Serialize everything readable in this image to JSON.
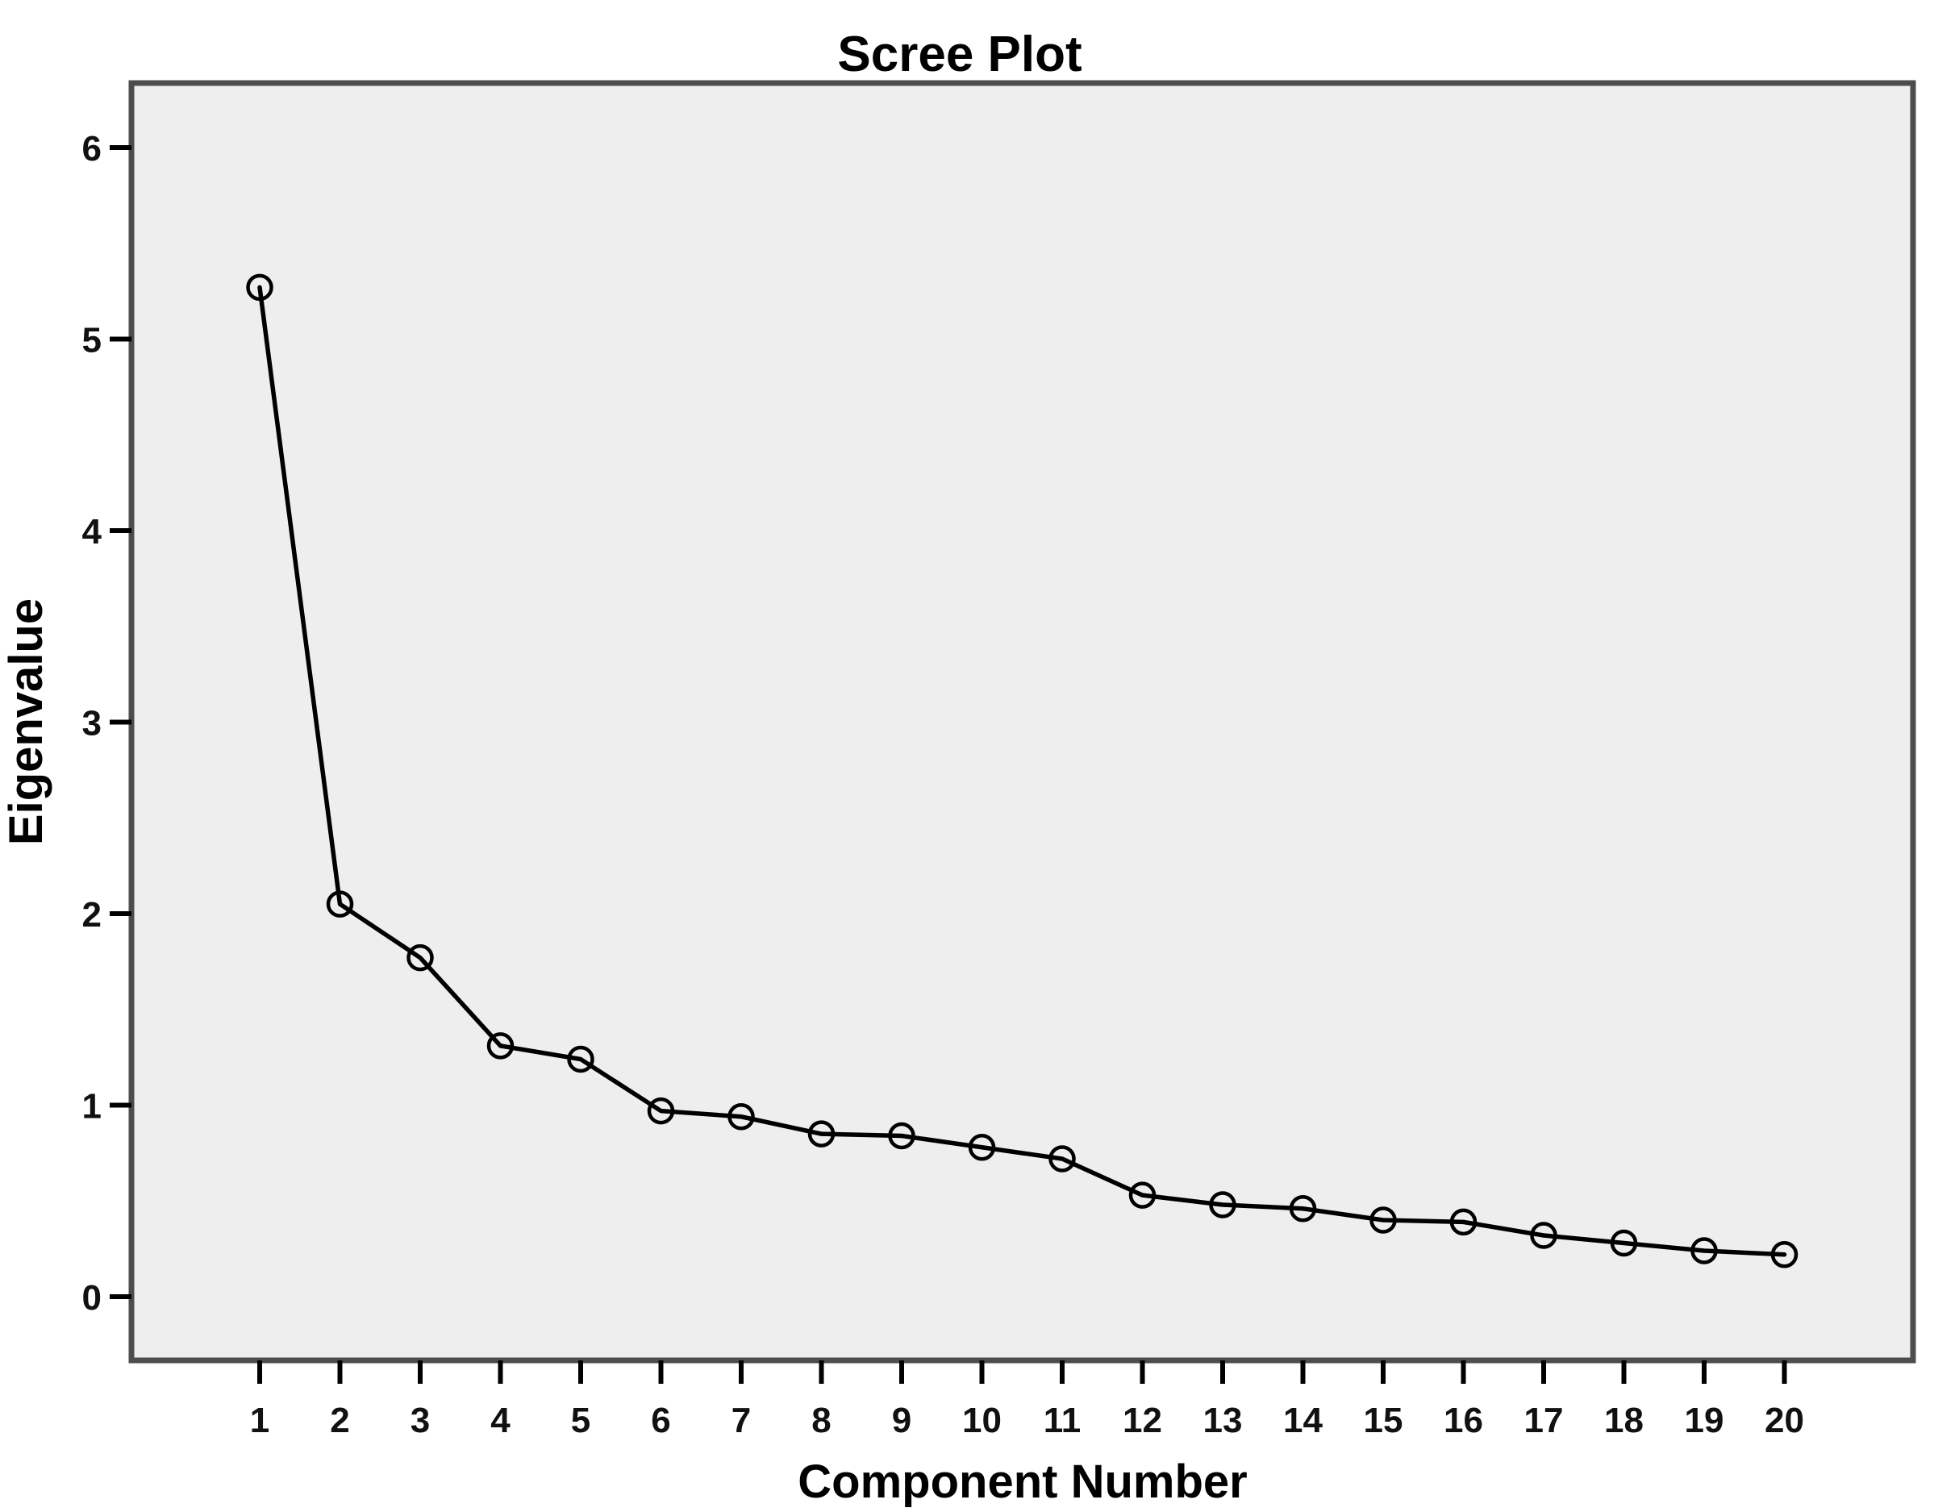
{
  "chart_data": {
    "type": "line",
    "title": "Scree Plot",
    "xlabel": "Component Number",
    "ylabel": "Eigenvalue",
    "x": [
      1,
      2,
      3,
      4,
      5,
      6,
      7,
      8,
      9,
      10,
      11,
      12,
      13,
      14,
      15,
      16,
      17,
      18,
      19,
      20
    ],
    "series": [
      {
        "name": "Eigenvalue",
        "values": [
          5.27,
          2.05,
          1.77,
          1.31,
          1.24,
          0.97,
          0.94,
          0.85,
          0.84,
          0.78,
          0.72,
          0.53,
          0.48,
          0.46,
          0.4,
          0.39,
          0.32,
          0.28,
          0.24,
          0.22
        ]
      }
    ],
    "xticks": [
      1,
      2,
      3,
      4,
      5,
      6,
      7,
      8,
      9,
      10,
      11,
      12,
      13,
      14,
      15,
      16,
      17,
      18,
      19,
      20
    ],
    "yticks": [
      0,
      1,
      2,
      3,
      4,
      5,
      6
    ],
    "ylim": [
      -0.33,
      6.34
    ],
    "xlim": [
      0,
      21.6
    ],
    "grid": false,
    "legend": "none",
    "marker": "open-circle",
    "colors": {
      "background": "#ffffff",
      "plot_background": "#eeeeee",
      "frame": "#4d4d4d",
      "line": "#000000",
      "marker_stroke": "#000000",
      "text": "#000000"
    }
  }
}
